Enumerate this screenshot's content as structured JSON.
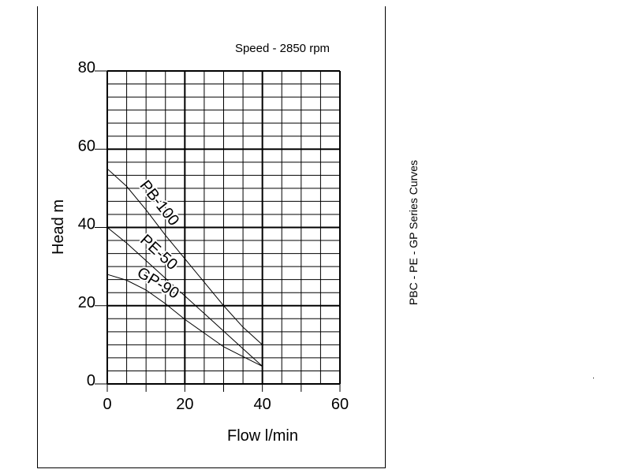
{
  "side_label": "PBC - PE - GP Series Curves",
  "chart_data": {
    "type": "line",
    "title": "Speed - 2850 rpm",
    "xlabel": "Flow l/min",
    "ylabel": "Head m",
    "xlim": [
      0,
      60
    ],
    "ylim": [
      0,
      80
    ],
    "x_ticks": [
      "0",
      "20",
      "40",
      "60"
    ],
    "y_ticks": [
      "0",
      "20",
      "40",
      "60",
      "80"
    ],
    "grid": true,
    "series": [
      {
        "name": "PB-100",
        "x": [
          0,
          5,
          10,
          15,
          20,
          25,
          30,
          35,
          40
        ],
        "y": [
          55,
          50.5,
          44.5,
          38,
          32,
          26,
          20,
          14.5,
          10
        ]
      },
      {
        "name": "PE-50",
        "x": [
          0,
          5,
          10,
          15,
          20,
          25,
          30,
          35,
          40
        ],
        "y": [
          40,
          36,
          31.5,
          27,
          22.5,
          18,
          13.5,
          9,
          4.5
        ]
      },
      {
        "name": "GP-90",
        "x": [
          0,
          5,
          10,
          15,
          20,
          25,
          30,
          35,
          40
        ],
        "y": [
          28,
          26.5,
          24,
          20.5,
          16.5,
          13,
          9.5,
          7,
          4.5
        ]
      }
    ]
  }
}
